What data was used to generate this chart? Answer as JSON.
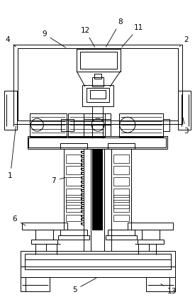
{
  "fig_width": 2.75,
  "fig_height": 4.19,
  "dpi": 100,
  "bg_color": "#ffffff",
  "line_color": "#000000",
  "lw": 0.7,
  "label_fontsize": 7.5
}
